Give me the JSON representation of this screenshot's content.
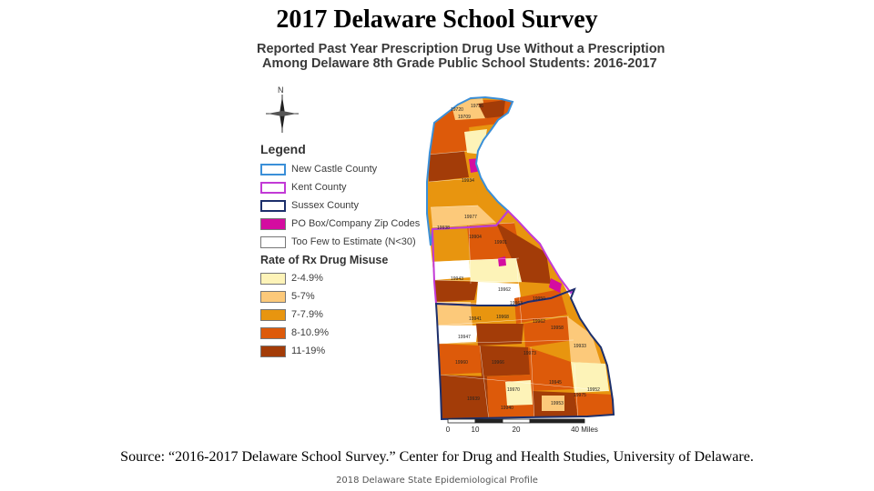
{
  "slide": {
    "title": "2017 Delaware School Survey",
    "source": "Source: “2016-2017 Delaware School Survey.” Center for Drug and Health Studies, University of Delaware.",
    "footer": "2018 Delaware State Epidemiological Profile"
  },
  "map": {
    "title_line1": "Reported Past Year Prescription Drug Use Without a Prescription",
    "title_line2": "Among Delaware 8th Grade Public School Students: 2016-2017",
    "north_label": "N",
    "legend": {
      "heading": "Legend",
      "boundaries": [
        {
          "label": "New Castle County",
          "color": "#3a8fd8"
        },
        {
          "label": "Kent County",
          "color": "#c23ad6"
        },
        {
          "label": "Sussex County",
          "color": "#1c2f6b"
        },
        {
          "label": "PO Box/Company Zip Codes",
          "color": "#d40ca0"
        },
        {
          "label": "Too Few to Estimate (N<30)",
          "color": "#ffffff"
        }
      ],
      "rate_heading": "Rate of Rx Drug Misuse",
      "rates": [
        {
          "label": "2-4.9%",
          "color": "#fdf3b8"
        },
        {
          "label": "5-7%",
          "color": "#fcc97a"
        },
        {
          "label": "7-7.9%",
          "color": "#e8950f"
        },
        {
          "label": "8-10.9%",
          "color": "#dd5a0a"
        },
        {
          "label": "11-19%",
          "color": "#a33c08"
        }
      ]
    },
    "scale": {
      "ticks": [
        "0",
        "10",
        "20",
        "40 Miles"
      ]
    },
    "zip_labels": [
      "19720",
      "19736",
      "19709",
      "19934",
      "19977",
      "19938",
      "19904",
      "19901",
      "19943",
      "19962",
      "19950",
      "19963",
      "19941",
      "19968",
      "19958",
      "19933",
      "19947",
      "19973",
      "19960",
      "19966",
      "19945",
      "19975",
      "19970",
      "19939",
      "19940",
      "19953",
      "19962",
      "19952"
    ]
  }
}
